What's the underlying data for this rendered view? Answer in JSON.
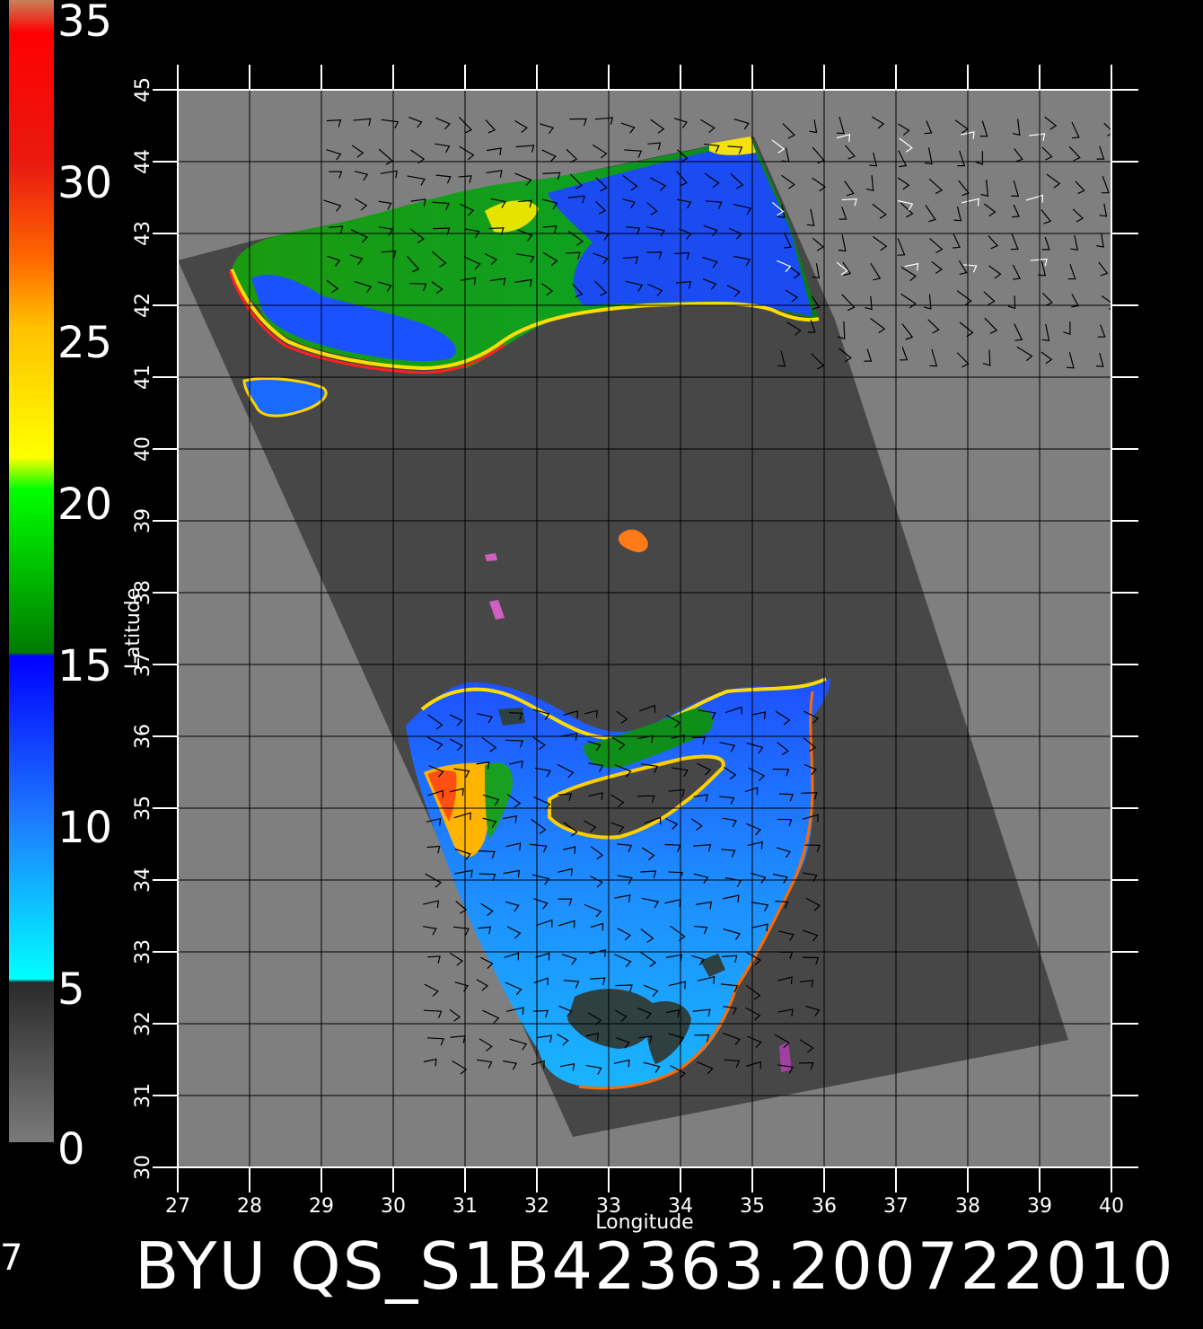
{
  "colorbar": {
    "labels": [
      "35",
      "30",
      "25",
      "20",
      "15",
      "10",
      "5",
      "0"
    ],
    "stops": [
      {
        "value": 35,
        "color": "#c8825a"
      },
      {
        "value": 34,
        "color": "#ff0000"
      },
      {
        "value": 30,
        "color": "#e81a10"
      },
      {
        "value": 27,
        "color": "#ff6a00"
      },
      {
        "value": 25,
        "color": "#ffc000"
      },
      {
        "value": 21,
        "color": "#ffff00"
      },
      {
        "value": 20,
        "color": "#00ff00"
      },
      {
        "value": 15,
        "color": "#007a00"
      },
      {
        "value": 14.9,
        "color": "#0000ff"
      },
      {
        "value": 10,
        "color": "#1e78ff"
      },
      {
        "value": 5,
        "color": "#00ffff"
      },
      {
        "value": 4.9,
        "color": "#2a2a2a"
      },
      {
        "value": 0,
        "color": "#7a7a7a"
      }
    ]
  },
  "map": {
    "lon_range": [
      27,
      40
    ],
    "lat_range": [
      30,
      45
    ],
    "lon_ticks": [
      "27",
      "28",
      "29",
      "30",
      "31",
      "32",
      "33",
      "34",
      "35",
      "36",
      "37",
      "38",
      "39",
      "40"
    ],
    "lat_ticks": [
      "30",
      "31",
      "32",
      "33",
      "34",
      "35",
      "36",
      "37",
      "38",
      "39",
      "40",
      "41",
      "42",
      "43",
      "44",
      "45"
    ],
    "xlabel": "Longitude",
    "ylabel": "Latitude",
    "colors": {
      "land": "#7f7f7f",
      "swath": "#474747",
      "grid": "#000000",
      "frame": "#ffffff"
    }
  },
  "footer": {
    "title": "BYU QS_S1B42363.200722010",
    "left_mark": "7"
  }
}
